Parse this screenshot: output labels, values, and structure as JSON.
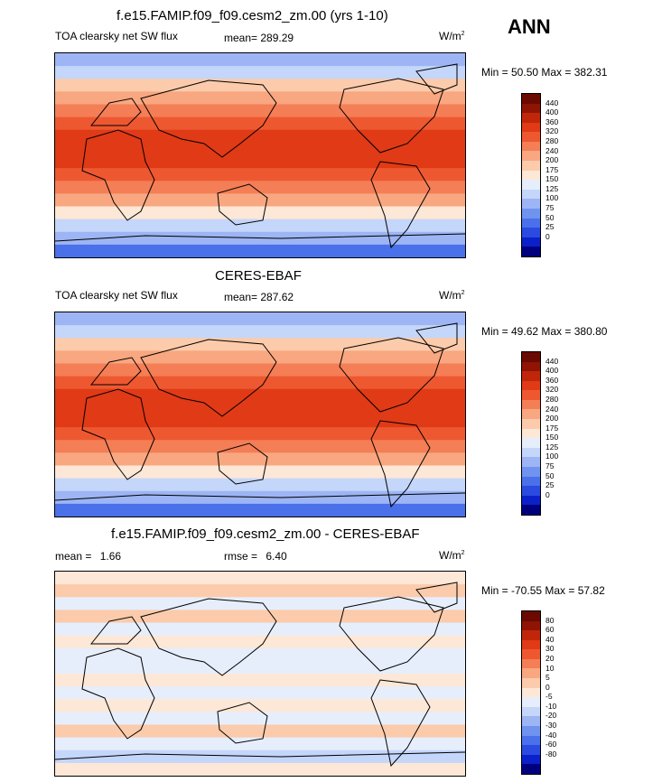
{
  "season": "ANN",
  "colors": {
    "sw_scale": [
      "#00007f",
      "#0b20c8",
      "#2a4ae0",
      "#4a70ea",
      "#7093ef",
      "#9db5f4",
      "#c4d6f9",
      "#e6eefc",
      "#fde7d6",
      "#fbcbab",
      "#f8a780",
      "#f47e56",
      "#ee5830",
      "#e03a16",
      "#c0260a",
      "#8f1404",
      "#6a0a00"
    ],
    "diff_scale": [
      "#00007f",
      "#0b20c8",
      "#2a4ae0",
      "#4a70ea",
      "#7093ef",
      "#9db5f4",
      "#c4d6f9",
      "#e6eefc",
      "#fde7d6",
      "#fbcbab",
      "#f8a780",
      "#f47e56",
      "#ee5830",
      "#e03a16",
      "#c0260a",
      "#8f1404",
      "#6a0a00"
    ]
  },
  "panels": [
    {
      "title": "f.e15.FAMIP.f09_f09.cesm2_zm.00 (yrs 1-10)",
      "variable": "TOA clearsky net SW flux",
      "stat_label": "mean=",
      "stat_value": "289.29",
      "stat2_label": "",
      "stat2_value": "",
      "units": "W/m",
      "units_sup": "2",
      "minmax": "Min =  50.50 Max = 382.31",
      "ticks": [
        "440",
        "400",
        "360",
        "320",
        "280",
        "240",
        "200",
        "175",
        "150",
        "125",
        "100",
        "75",
        "50",
        "25",
        "0"
      ]
    },
    {
      "title": "CERES-EBAF",
      "variable": "TOA clearsky net SW flux",
      "stat_label": "mean=",
      "stat_value": "287.62",
      "stat2_label": "",
      "stat2_value": "",
      "units": "W/m",
      "units_sup": "2",
      "minmax": "Min =  49.62 Max = 380.80",
      "ticks": [
        "440",
        "400",
        "360",
        "320",
        "280",
        "240",
        "200",
        "175",
        "150",
        "125",
        "100",
        "75",
        "50",
        "25",
        "0"
      ]
    },
    {
      "title": "f.e15.FAMIP.f09_f09.cesm2_zm.00 - CERES-EBAF",
      "variable": "",
      "stat_label": "mean =",
      "stat_value": "1.66",
      "stat2_label": "rmse =",
      "stat2_value": "6.40",
      "units": "W/m",
      "units_sup": "2",
      "minmax": "Min = -70.55 Max =  57.82",
      "ticks": [
        "80",
        "60",
        "40",
        "30",
        "20",
        "10",
        "5",
        "0",
        "-5",
        "-10",
        "-20",
        "-30",
        "-40",
        "-60",
        "-80"
      ]
    }
  ]
}
